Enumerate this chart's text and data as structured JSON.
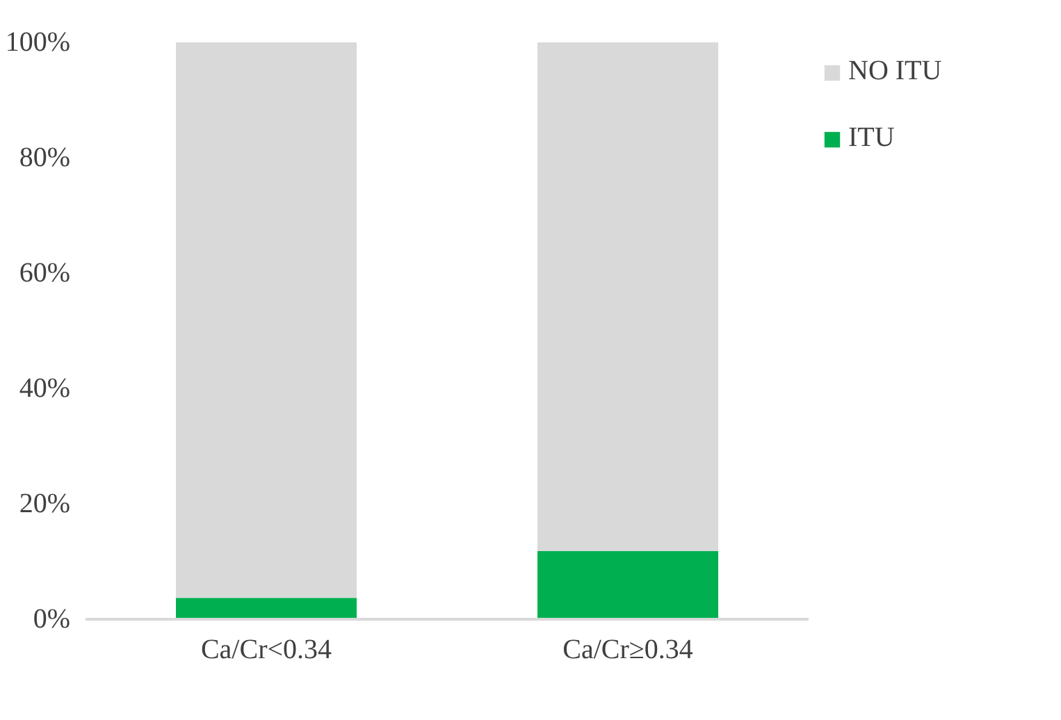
{
  "chart_data": {
    "type": "bar",
    "stacked": true,
    "categories": [
      "Ca/Cr<0.34",
      "Ca/Cr≥0.34"
    ],
    "series": [
      {
        "name": "ITU",
        "color": "#00b050",
        "values": [
          3.7,
          11.8
        ]
      },
      {
        "name": "NO ITU",
        "color": "#d9d9d9",
        "values": [
          96.3,
          88.2
        ]
      }
    ],
    "ylim": [
      0,
      100
    ],
    "yticks": [
      {
        "value": 0,
        "label": "0%"
      },
      {
        "value": 20,
        "label": "20%"
      },
      {
        "value": 40,
        "label": "40%"
      },
      {
        "value": 60,
        "label": "60%"
      },
      {
        "value": 80,
        "label": "80%"
      },
      {
        "value": 100,
        "label": "100%"
      }
    ],
    "grid": false,
    "legend": "right"
  }
}
